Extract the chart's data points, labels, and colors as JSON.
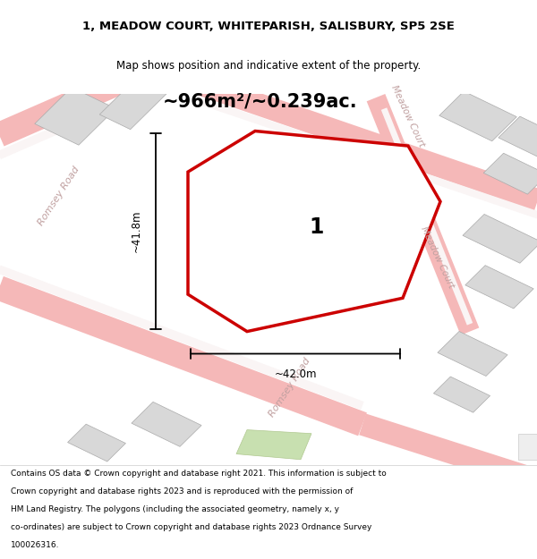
{
  "title_line1": "1, MEADOW COURT, WHITEPARISH, SALISBURY, SP5 2SE",
  "title_line2": "Map shows position and indicative extent of the property.",
  "area_text": "~966m²/~0.239ac.",
  "label_1": "1",
  "dim_width": "~42.0m",
  "dim_height": "~41.8m",
  "footer_lines": [
    "Contains OS data © Crown copyright and database right 2021. This information is subject to",
    "Crown copyright and database rights 2023 and is reproduced with the permission of",
    "HM Land Registry. The polygons (including the associated geometry, namely x, y",
    "co-ordinates) are subject to Crown copyright and database rights 2023 Ordnance Survey",
    "100026316."
  ],
  "bg_color": "#faf5f5",
  "road_color": "#f5b8b8",
  "building_color": "#d8d8d8",
  "plot_color": "#cc0000",
  "road_label_color": "#c0a0a0"
}
